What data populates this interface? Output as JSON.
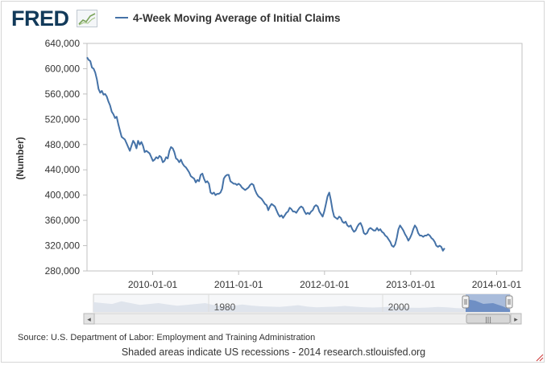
{
  "header": {
    "logo_text": "FRED",
    "logo_icon": "line-graph-icon",
    "legend_label": "4-Week Moving Average of Initial Claims"
  },
  "colors": {
    "series": "#4572a7",
    "navigator_fill": "#a9bcdb",
    "navigator_selected": "#6f8fc4",
    "logo": "#123a5a"
  },
  "chart_data": {
    "type": "line",
    "title": "",
    "xlabel": "",
    "ylabel": "(Number)",
    "xlim": [
      "2009-03-28",
      "2014-04-19"
    ],
    "ylim": [
      280000,
      640000
    ],
    "y_ticks": [
      280000,
      320000,
      360000,
      400000,
      440000,
      480000,
      520000,
      560000,
      600000,
      640000
    ],
    "y_tick_labels": [
      "280,000",
      "320,000",
      "360,000",
      "400,000",
      "440,000",
      "480,000",
      "520,000",
      "560,000",
      "600,000",
      "640,000"
    ],
    "x_ticks": [
      "2010-01-01",
      "2011-01-01",
      "2012-01-01",
      "2013-01-01",
      "2014-01-01"
    ],
    "x_tick_labels": [
      "2010-01-01",
      "2011-01-01",
      "2012-01-01",
      "2013-01-01",
      "2014-01-01"
    ],
    "grid": false,
    "legend": "top",
    "series": [
      {
        "name": "4-Week Moving Average of Initial Claims",
        "points": [
          [
            "2009-03-28",
            618000
          ],
          [
            "2009-04-04",
            614000
          ],
          [
            "2009-04-11",
            612000
          ],
          [
            "2009-04-18",
            602000
          ],
          [
            "2009-04-25",
            600000
          ],
          [
            "2009-05-02",
            594000
          ],
          [
            "2009-05-09",
            583000
          ],
          [
            "2009-05-16",
            568000
          ],
          [
            "2009-05-23",
            562000
          ],
          [
            "2009-05-30",
            565000
          ],
          [
            "2009-06-06",
            559000
          ],
          [
            "2009-06-13",
            560000
          ],
          [
            "2009-06-20",
            556000
          ],
          [
            "2009-06-27",
            548000
          ],
          [
            "2009-07-04",
            542000
          ],
          [
            "2009-07-11",
            532000
          ],
          [
            "2009-07-18",
            528000
          ],
          [
            "2009-07-25",
            522000
          ],
          [
            "2009-08-01",
            524000
          ],
          [
            "2009-08-08",
            512000
          ],
          [
            "2009-08-15",
            502000
          ],
          [
            "2009-08-22",
            492000
          ],
          [
            "2009-08-29",
            490000
          ],
          [
            "2009-09-05",
            488000
          ],
          [
            "2009-09-12",
            482000
          ],
          [
            "2009-09-19",
            476000
          ],
          [
            "2009-09-26",
            470000
          ],
          [
            "2009-10-03",
            478000
          ],
          [
            "2009-10-10",
            486000
          ],
          [
            "2009-10-17",
            482000
          ],
          [
            "2009-10-24",
            474000
          ],
          [
            "2009-10-31",
            486000
          ],
          [
            "2009-11-07",
            480000
          ],
          [
            "2009-11-14",
            484000
          ],
          [
            "2009-11-21",
            478000
          ],
          [
            "2009-11-28",
            468000
          ],
          [
            "2009-12-05",
            470000
          ],
          [
            "2009-12-12",
            468000
          ],
          [
            "2009-12-19",
            466000
          ],
          [
            "2009-12-26",
            460000
          ],
          [
            "2010-01-02",
            454000
          ],
          [
            "2010-01-09",
            456000
          ],
          [
            "2010-01-16",
            460000
          ],
          [
            "2010-01-23",
            458000
          ],
          [
            "2010-01-30",
            462000
          ],
          [
            "2010-02-06",
            460000
          ],
          [
            "2010-02-13",
            452000
          ],
          [
            "2010-02-20",
            454000
          ],
          [
            "2010-02-27",
            460000
          ],
          [
            "2010-03-06",
            458000
          ],
          [
            "2010-03-13",
            470000
          ],
          [
            "2010-03-20",
            476000
          ],
          [
            "2010-03-27",
            474000
          ],
          [
            "2010-04-03",
            468000
          ],
          [
            "2010-04-10",
            458000
          ],
          [
            "2010-04-17",
            456000
          ],
          [
            "2010-04-24",
            452000
          ],
          [
            "2010-05-01",
            456000
          ],
          [
            "2010-05-08",
            450000
          ],
          [
            "2010-05-15",
            446000
          ],
          [
            "2010-05-22",
            444000
          ],
          [
            "2010-05-29",
            440000
          ],
          [
            "2010-06-05",
            436000
          ],
          [
            "2010-06-12",
            430000
          ],
          [
            "2010-06-19",
            428000
          ],
          [
            "2010-06-26",
            426000
          ],
          [
            "2010-07-03",
            420000
          ],
          [
            "2010-07-10",
            424000
          ],
          [
            "2010-07-17",
            422000
          ],
          [
            "2010-07-24",
            432000
          ],
          [
            "2010-07-31",
            434000
          ],
          [
            "2010-08-07",
            426000
          ],
          [
            "2010-08-14",
            420000
          ],
          [
            "2010-08-21",
            422000
          ],
          [
            "2010-08-28",
            418000
          ],
          [
            "2010-09-04",
            404000
          ],
          [
            "2010-09-11",
            402000
          ],
          [
            "2010-09-18",
            404000
          ],
          [
            "2010-09-25",
            400000
          ],
          [
            "2010-10-02",
            402000
          ],
          [
            "2010-10-09",
            402000
          ],
          [
            "2010-10-16",
            404000
          ],
          [
            "2010-10-23",
            410000
          ],
          [
            "2010-10-30",
            426000
          ],
          [
            "2010-11-06",
            430000
          ],
          [
            "2010-11-13",
            432000
          ],
          [
            "2010-11-20",
            432000
          ],
          [
            "2010-11-27",
            422000
          ],
          [
            "2010-12-04",
            420000
          ],
          [
            "2010-12-11",
            418000
          ],
          [
            "2010-12-18",
            418000
          ],
          [
            "2010-12-25",
            416000
          ],
          [
            "2011-01-01",
            418000
          ],
          [
            "2011-01-08",
            416000
          ],
          [
            "2011-01-15",
            412000
          ],
          [
            "2011-01-22",
            410000
          ],
          [
            "2011-01-29",
            408000
          ],
          [
            "2011-02-05",
            410000
          ],
          [
            "2011-02-12",
            412000
          ],
          [
            "2011-02-19",
            416000
          ],
          [
            "2011-02-26",
            418000
          ],
          [
            "2011-03-05",
            416000
          ],
          [
            "2011-03-12",
            408000
          ],
          [
            "2011-03-19",
            402000
          ],
          [
            "2011-03-26",
            398000
          ],
          [
            "2011-04-02",
            396000
          ],
          [
            "2011-04-09",
            394000
          ],
          [
            "2011-04-16",
            390000
          ],
          [
            "2011-04-23",
            386000
          ],
          [
            "2011-04-30",
            384000
          ],
          [
            "2011-05-07",
            376000
          ],
          [
            "2011-05-14",
            382000
          ],
          [
            "2011-05-21",
            386000
          ],
          [
            "2011-05-28",
            384000
          ],
          [
            "2011-06-04",
            382000
          ],
          [
            "2011-06-11",
            376000
          ],
          [
            "2011-06-18",
            370000
          ],
          [
            "2011-06-25",
            366000
          ],
          [
            "2011-07-02",
            368000
          ],
          [
            "2011-07-09",
            364000
          ],
          [
            "2011-07-16",
            368000
          ],
          [
            "2011-07-23",
            372000
          ],
          [
            "2011-07-30",
            374000
          ],
          [
            "2011-08-06",
            380000
          ],
          [
            "2011-08-13",
            378000
          ],
          [
            "2011-08-20",
            374000
          ],
          [
            "2011-08-27",
            374000
          ],
          [
            "2011-09-03",
            372000
          ],
          [
            "2011-09-10",
            376000
          ],
          [
            "2011-09-17",
            380000
          ],
          [
            "2011-09-24",
            382000
          ],
          [
            "2011-10-01",
            380000
          ],
          [
            "2011-10-08",
            374000
          ],
          [
            "2011-10-15",
            370000
          ],
          [
            "2011-10-22",
            372000
          ],
          [
            "2011-10-29",
            370000
          ],
          [
            "2011-11-05",
            374000
          ],
          [
            "2011-11-12",
            376000
          ],
          [
            "2011-11-19",
            382000
          ],
          [
            "2011-11-26",
            384000
          ],
          [
            "2011-12-03",
            382000
          ],
          [
            "2011-12-10",
            374000
          ],
          [
            "2011-12-17",
            370000
          ],
          [
            "2011-12-24",
            366000
          ],
          [
            "2011-12-31",
            374000
          ],
          [
            "2012-01-07",
            386000
          ],
          [
            "2012-01-14",
            398000
          ],
          [
            "2012-01-21",
            404000
          ],
          [
            "2012-01-28",
            392000
          ],
          [
            "2012-02-04",
            376000
          ],
          [
            "2012-02-11",
            366000
          ],
          [
            "2012-02-18",
            364000
          ],
          [
            "2012-02-25",
            362000
          ],
          [
            "2012-03-03",
            366000
          ],
          [
            "2012-03-10",
            364000
          ],
          [
            "2012-03-17",
            358000
          ],
          [
            "2012-03-24",
            356000
          ],
          [
            "2012-03-31",
            358000
          ],
          [
            "2012-04-07",
            352000
          ],
          [
            "2012-04-14",
            350000
          ],
          [
            "2012-04-21",
            352000
          ],
          [
            "2012-04-28",
            346000
          ],
          [
            "2012-05-05",
            342000
          ],
          [
            "2012-05-12",
            344000
          ],
          [
            "2012-05-19",
            350000
          ],
          [
            "2012-05-26",
            354000
          ],
          [
            "2012-06-02",
            356000
          ],
          [
            "2012-06-09",
            350000
          ],
          [
            "2012-06-16",
            340000
          ],
          [
            "2012-06-23",
            338000
          ],
          [
            "2012-06-30",
            340000
          ],
          [
            "2012-07-07",
            346000
          ],
          [
            "2012-07-14",
            348000
          ],
          [
            "2012-07-21",
            346000
          ],
          [
            "2012-07-28",
            344000
          ],
          [
            "2012-08-04",
            344000
          ],
          [
            "2012-08-11",
            348000
          ],
          [
            "2012-08-18",
            344000
          ],
          [
            "2012-08-25",
            346000
          ],
          [
            "2012-09-01",
            342000
          ],
          [
            "2012-09-08",
            340000
          ],
          [
            "2012-09-15",
            336000
          ],
          [
            "2012-09-22",
            334000
          ],
          [
            "2012-09-29",
            330000
          ],
          [
            "2012-10-06",
            326000
          ],
          [
            "2012-10-13",
            320000
          ],
          [
            "2012-10-20",
            318000
          ],
          [
            "2012-10-27",
            322000
          ],
          [
            "2012-11-03",
            332000
          ],
          [
            "2012-11-10",
            346000
          ],
          [
            "2012-11-17",
            352000
          ],
          [
            "2012-11-24",
            348000
          ],
          [
            "2012-12-01",
            344000
          ],
          [
            "2012-12-08",
            338000
          ],
          [
            "2012-12-15",
            334000
          ],
          [
            "2012-12-22",
            328000
          ],
          [
            "2012-12-29",
            332000
          ],
          [
            "2013-01-05",
            338000
          ],
          [
            "2013-01-12",
            346000
          ],
          [
            "2013-01-19",
            352000
          ],
          [
            "2013-01-26",
            348000
          ],
          [
            "2013-02-02",
            340000
          ],
          [
            "2013-02-09",
            336000
          ],
          [
            "2013-02-16",
            336000
          ],
          [
            "2013-02-23",
            334000
          ],
          [
            "2013-03-02",
            336000
          ],
          [
            "2013-03-09",
            336000
          ],
          [
            "2013-03-16",
            338000
          ],
          [
            "2013-03-23",
            336000
          ],
          [
            "2013-03-30",
            332000
          ],
          [
            "2013-04-06",
            330000
          ],
          [
            "2013-04-13",
            326000
          ],
          [
            "2013-04-20",
            320000
          ],
          [
            "2013-04-27",
            318000
          ],
          [
            "2013-05-04",
            320000
          ],
          [
            "2013-05-11",
            318000
          ],
          [
            "2013-05-18",
            312000
          ],
          [
            "2013-05-25",
            316000
          ]
        ]
      }
    ]
  },
  "navigator": {
    "labels": [
      "1980",
      "2000"
    ],
    "scrollbar_grip": "|||",
    "left_arrow": "◂",
    "right_arrow": "▸"
  },
  "footer": {
    "source": "Source: U.S. Department of Labor: Employment and Training Administration",
    "note": "Shaded areas indicate US recessions - 2014 research.stlouisfed.org"
  }
}
